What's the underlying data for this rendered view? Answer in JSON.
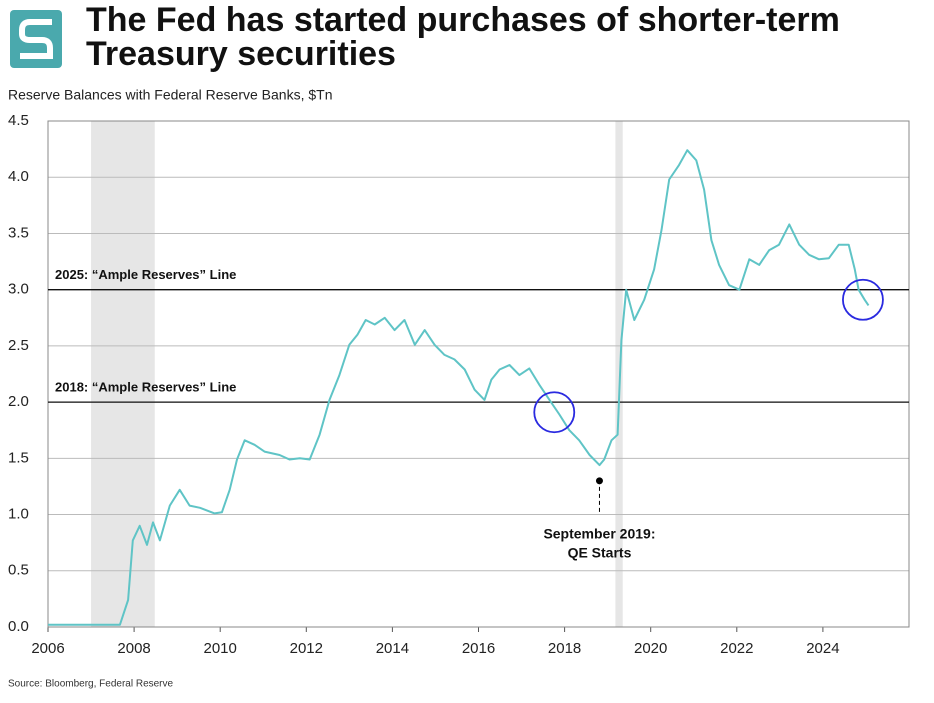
{
  "chart_data": {
    "type": "line",
    "title": [
      "The Fed has started purchases of shorter-term",
      "Treasury securities"
    ],
    "subtitle": "Reserve Balances with Federal Reserve Banks, $Tn",
    "source": "Source: Bloomberg, Federal Reserve",
    "xlim": [
      2006,
      2026
    ],
    "ylim": [
      0,
      4.5
    ],
    "xticks": [
      2006,
      2008,
      2010,
      2012,
      2014,
      2016,
      2018,
      2020,
      2022,
      2024
    ],
    "yticks": [
      {
        "value": 0,
        "label": "0.0"
      },
      {
        "value": 0.5,
        "label": "0.5"
      },
      {
        "value": 1,
        "label": "1.0"
      },
      {
        "value": 1.5,
        "label": "1.5"
      },
      {
        "value": 2,
        "label": "2.0"
      },
      {
        "value": 2.5,
        "label": "2.5"
      },
      {
        "value": 3,
        "label": "3.0"
      },
      {
        "value": 3.5,
        "label": "3.5"
      },
      {
        "value": 4,
        "label": "4.0"
      },
      {
        "value": 4.5,
        "label": "4.5"
      }
    ],
    "grid": true,
    "shaded_ranges": [
      [
        2007.0,
        2008.48
      ],
      [
        2019.18,
        2019.35
      ]
    ],
    "reference_lines": [
      {
        "value": 3,
        "label": "2025: “Ample Reserves” Line"
      },
      {
        "value": 2,
        "label": "2018: “Ample Reserves” Line"
      }
    ],
    "circles": [
      {
        "x": 2017.76,
        "y": 1.91
      },
      {
        "x": 2024.93,
        "y": 2.91
      }
    ],
    "annotation": {
      "x": 2018.81,
      "y": 1.3,
      "lines": [
        "September 2019:",
        "QE Starts"
      ]
    },
    "series": [
      {
        "name": "Reserve Balances",
        "color": "#5fc4c6",
        "x": [
          2006,
          2007.67,
          2007.86,
          2007.97,
          2008.13,
          2008.3,
          2008.44,
          2008.6,
          2008.83,
          2009.06,
          2009.29,
          2009.53,
          2009.87,
          2010.04,
          2010.22,
          2010.39,
          2010.57,
          2010.8,
          2011.03,
          2011.38,
          2011.61,
          2011.85,
          2012.08,
          2012.31,
          2012.54,
          2012.77,
          2013.0,
          2013.19,
          2013.38,
          2013.59,
          2013.82,
          2014.05,
          2014.28,
          2014.52,
          2014.75,
          2014.98,
          2015.21,
          2015.44,
          2015.68,
          2015.91,
          2016.14,
          2016.3,
          2016.49,
          2016.72,
          2016.95,
          2017.18,
          2017.42,
          2017.65,
          2017.88,
          2018.11,
          2018.34,
          2018.58,
          2018.81,
          2018.92,
          2019.09,
          2019.23,
          2019.32,
          2019.43,
          2019.62,
          2019.85,
          2020.08,
          2020.25,
          2020.43,
          2020.66,
          2020.85,
          2021.06,
          2021.24,
          2021.41,
          2021.59,
          2021.82,
          2022.06,
          2022.29,
          2022.52,
          2022.75,
          2022.98,
          2023.22,
          2023.45,
          2023.68,
          2023.91,
          2024.14,
          2024.37,
          2024.6,
          2024.74,
          2024.83,
          2024.97,
          2025.06
        ],
        "values": [
          0.02,
          0.02,
          0.24,
          0.77,
          0.9,
          0.73,
          0.93,
          0.77,
          1.08,
          1.22,
          1.08,
          1.06,
          1.01,
          1.02,
          1.22,
          1.49,
          1.66,
          1.62,
          1.56,
          1.53,
          1.49,
          1.5,
          1.49,
          1.71,
          2.02,
          2.24,
          2.51,
          2.6,
          2.73,
          2.69,
          2.75,
          2.64,
          2.73,
          2.51,
          2.64,
          2.51,
          2.42,
          2.38,
          2.29,
          2.11,
          2.02,
          2.2,
          2.29,
          2.33,
          2.24,
          2.3,
          2.15,
          2.02,
          1.89,
          1.75,
          1.66,
          1.53,
          1.44,
          1.49,
          1.66,
          1.71,
          2.55,
          3.0,
          2.73,
          2.91,
          3.18,
          3.53,
          3.98,
          4.11,
          4.24,
          4.15,
          3.89,
          3.44,
          3.22,
          3.04,
          3.0,
          3.27,
          3.22,
          3.35,
          3.4,
          3.58,
          3.4,
          3.31,
          3.27,
          3.28,
          3.4,
          3.4,
          3.18,
          3.0,
          2.91,
          2.86
        ]
      }
    ]
  }
}
